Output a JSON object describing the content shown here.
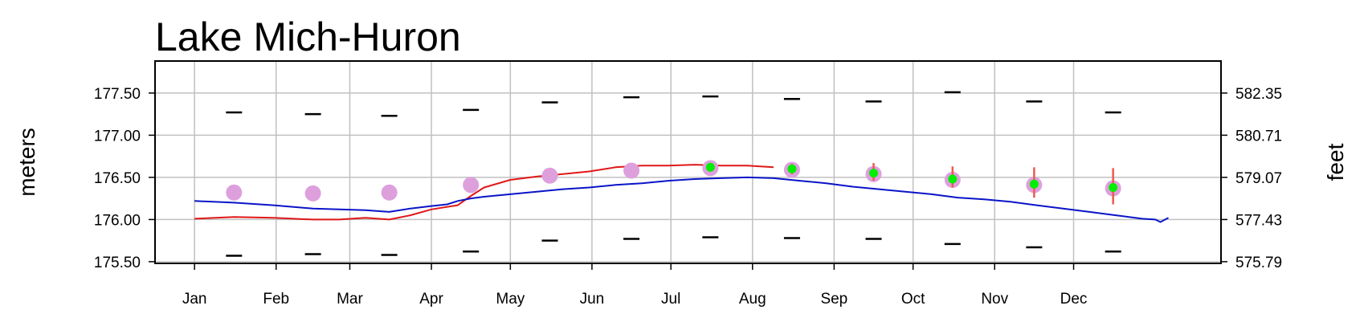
{
  "chart_data": {
    "type": "line",
    "title": "Lake Mich-Huron",
    "ylabel_left": "meters",
    "ylabel_right": "feet",
    "x_tick_labels": [
      "Jan",
      "Feb",
      "Mar",
      "Apr",
      "May",
      "Jun",
      "Jul",
      "Aug",
      "Sep",
      "Oct",
      "Nov",
      "Dec"
    ],
    "y_ticks_left": [
      "175.50",
      "176.00",
      "176.50",
      "177.00",
      "177.50"
    ],
    "y_ticks_right": [
      "575.79",
      "577.43",
      "579.07",
      "580.71",
      "582.35"
    ],
    "ylim": [
      175.48,
      177.88
    ],
    "xlim_days": [
      -15,
      390
    ],
    "grid": true,
    "colors": {
      "past_year": "#e01818",
      "current_year": "#0a14c8",
      "average": "#dda0dd",
      "forecast": "#00ee00",
      "forecast_range": "#ee5a50",
      "extremes": "#000000",
      "grid": "#c0c0c0"
    },
    "monthly_max": [
      {
        "day": 15,
        "value": 177.27
      },
      {
        "day": 45,
        "value": 177.25
      },
      {
        "day": 74,
        "value": 177.23
      },
      {
        "day": 105,
        "value": 177.3
      },
      {
        "day": 135,
        "value": 177.39
      },
      {
        "day": 166,
        "value": 177.45
      },
      {
        "day": 196,
        "value": 177.46
      },
      {
        "day": 227,
        "value": 177.43
      },
      {
        "day": 258,
        "value": 177.4
      },
      {
        "day": 288,
        "value": 177.51
      },
      {
        "day": 319,
        "value": 177.4
      },
      {
        "day": 349,
        "value": 177.27
      }
    ],
    "monthly_min": [
      {
        "day": 15,
        "value": 175.57
      },
      {
        "day": 45,
        "value": 175.59
      },
      {
        "day": 74,
        "value": 175.58
      },
      {
        "day": 105,
        "value": 175.62
      },
      {
        "day": 135,
        "value": 175.75
      },
      {
        "day": 166,
        "value": 175.77
      },
      {
        "day": 196,
        "value": 175.79
      },
      {
        "day": 227,
        "value": 175.78
      },
      {
        "day": 258,
        "value": 175.77
      },
      {
        "day": 288,
        "value": 175.71
      },
      {
        "day": 319,
        "value": 175.67
      },
      {
        "day": 349,
        "value": 175.62
      }
    ],
    "monthly_average": [
      {
        "day": 15,
        "value": 176.32
      },
      {
        "day": 45,
        "value": 176.31
      },
      {
        "day": 74,
        "value": 176.32
      },
      {
        "day": 105,
        "value": 176.41
      },
      {
        "day": 135,
        "value": 176.52
      },
      {
        "day": 166,
        "value": 176.58
      },
      {
        "day": 196,
        "value": 176.61
      },
      {
        "day": 227,
        "value": 176.59
      },
      {
        "day": 258,
        "value": 176.54
      },
      {
        "day": 288,
        "value": 176.47
      },
      {
        "day": 319,
        "value": 176.41
      },
      {
        "day": 349,
        "value": 176.37
      }
    ],
    "forecast": [
      {
        "day": 196,
        "value": 176.62,
        "low": 176.57,
        "high": 176.66
      },
      {
        "day": 227,
        "value": 176.6,
        "low": 176.54,
        "high": 176.66
      },
      {
        "day": 258,
        "value": 176.55,
        "low": 176.46,
        "high": 176.67
      },
      {
        "day": 288,
        "value": 176.48,
        "low": 176.38,
        "high": 176.63
      },
      {
        "day": 319,
        "value": 176.42,
        "low": 176.26,
        "high": 176.62
      },
      {
        "day": 349,
        "value": 176.38,
        "low": 176.18,
        "high": 176.61
      }
    ],
    "series": [
      {
        "key": "past_year",
        "x": [
          0,
          15,
          30,
          45,
          55,
          65,
          74,
          82,
          90,
          96,
          100,
          105,
          110,
          120,
          130,
          140,
          150,
          160,
          170,
          180,
          190,
          200,
          210,
          220
        ],
        "values": [
          176.01,
          176.03,
          176.02,
          176.0,
          176.0,
          176.02,
          176.0,
          176.05,
          176.12,
          176.15,
          176.17,
          176.28,
          176.38,
          176.47,
          176.51,
          176.54,
          176.57,
          176.62,
          176.64,
          176.64,
          176.65,
          176.64,
          176.64,
          176.62
        ]
      },
      {
        "key": "current_year",
        "x": [
          0,
          15,
          30,
          45,
          55,
          65,
          74,
          82,
          90,
          96,
          100,
          105,
          110,
          120,
          130,
          140,
          150,
          160,
          170,
          180,
          190,
          200,
          210,
          220,
          230,
          240,
          250,
          260,
          270,
          280,
          290,
          300,
          310,
          320,
          330,
          340,
          350,
          360,
          365,
          367,
          370
        ],
        "values": [
          176.22,
          176.2,
          176.17,
          176.13,
          176.12,
          176.11,
          176.09,
          176.13,
          176.16,
          176.18,
          176.22,
          176.25,
          176.27,
          176.3,
          176.33,
          176.36,
          176.38,
          176.41,
          176.43,
          176.46,
          176.48,
          176.49,
          176.5,
          176.49,
          176.46,
          176.43,
          176.39,
          176.36,
          176.33,
          176.3,
          176.26,
          176.24,
          176.21,
          176.17,
          176.13,
          176.09,
          176.05,
          176.01,
          176.0,
          175.97,
          176.02
        ]
      }
    ]
  }
}
